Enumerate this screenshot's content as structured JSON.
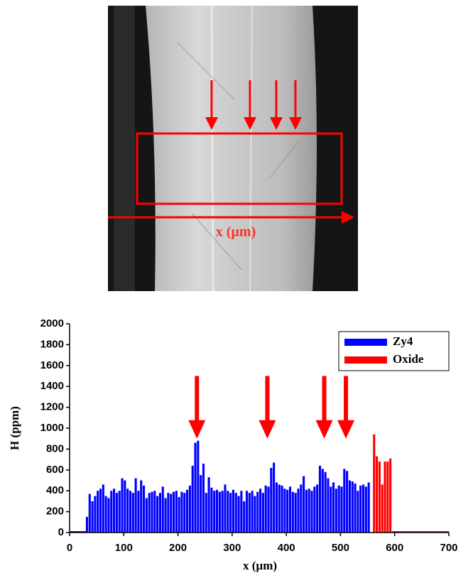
{
  "image": {
    "label": "x (µm)"
  },
  "chart_data": {
    "type": "bar",
    "xlabel": "x (µm)",
    "ylabel": "H (ppm)",
    "xlim": [
      0,
      700
    ],
    "ylim": [
      0,
      2000
    ],
    "xticks": [
      0,
      100,
      200,
      300,
      400,
      500,
      600,
      700
    ],
    "yticks": [
      0,
      200,
      400,
      600,
      800,
      1000,
      1200,
      1400,
      1600,
      1800,
      2000
    ],
    "legend": "upper right",
    "series": [
      {
        "name": "Zy4",
        "color": "#0000ff",
        "x": [
          0,
          5,
          10,
          15,
          20,
          25,
          30,
          35,
          40,
          45,
          50,
          55,
          60,
          65,
          70,
          75,
          80,
          85,
          90,
          95,
          100,
          105,
          110,
          115,
          120,
          125,
          130,
          135,
          140,
          145,
          150,
          155,
          160,
          165,
          170,
          175,
          180,
          185,
          190,
          195,
          200,
          205,
          210,
          215,
          220,
          225,
          230,
          235,
          240,
          245,
          250,
          255,
          260,
          265,
          270,
          275,
          280,
          285,
          290,
          295,
          300,
          305,
          310,
          315,
          320,
          325,
          330,
          335,
          340,
          345,
          350,
          355,
          360,
          365,
          370,
          375,
          380,
          385,
          390,
          395,
          400,
          405,
          410,
          415,
          420,
          425,
          430,
          435,
          440,
          445,
          450,
          455,
          460,
          465,
          470,
          475,
          480,
          485,
          490,
          495,
          500,
          505,
          510,
          515,
          520,
          525,
          530,
          535,
          540,
          545,
          550
        ],
        "values": [
          0,
          0,
          0,
          0,
          0,
          0,
          150,
          370,
          300,
          350,
          400,
          420,
          460,
          350,
          330,
          400,
          420,
          380,
          400,
          520,
          500,
          420,
          400,
          380,
          520,
          400,
          500,
          450,
          330,
          380,
          390,
          400,
          350,
          380,
          440,
          330,
          380,
          370,
          390,
          400,
          340,
          390,
          380,
          410,
          450,
          640,
          860,
          880,
          550,
          660,
          380,
          530,
          430,
          400,
          410,
          390,
          400,
          460,
          400,
          380,
          410,
          380,
          350,
          400,
          300,
          400,
          380,
          400,
          350,
          390,
          420,
          380,
          450,
          440,
          620,
          670,
          480,
          460,
          450,
          420,
          410,
          440,
          390,
          380,
          420,
          460,
          540,
          410,
          420,
          400,
          440,
          460,
          640,
          610,
          580,
          520,
          440,
          480,
          420,
          450,
          440,
          610,
          590,
          500,
          490,
          470,
          400,
          450,
          460,
          440,
          480
        ]
      },
      {
        "name": "Oxide",
        "color": "#ff0000",
        "x": [
          560,
          565,
          570,
          575,
          580,
          585,
          590,
          595,
          600,
          605,
          610,
          615,
          620,
          625,
          630,
          635,
          640,
          645,
          650,
          655,
          660,
          665,
          670,
          675,
          680,
          685,
          690,
          695
        ],
        "values": [
          940,
          730,
          680,
          460,
          680,
          680,
          710,
          0,
          0,
          0,
          0,
          0,
          0,
          0,
          0,
          0,
          0,
          0,
          0,
          0,
          0,
          0,
          0,
          0,
          0,
          0,
          0,
          0
        ]
      }
    ],
    "arrows": [
      {
        "x": 235,
        "from": 1500,
        "to": 900
      },
      {
        "x": 365,
        "from": 1500,
        "to": 900
      },
      {
        "x": 470,
        "from": 1500,
        "to": 900
      },
      {
        "x": 510,
        "from": 1500,
        "to": 900
      }
    ]
  }
}
